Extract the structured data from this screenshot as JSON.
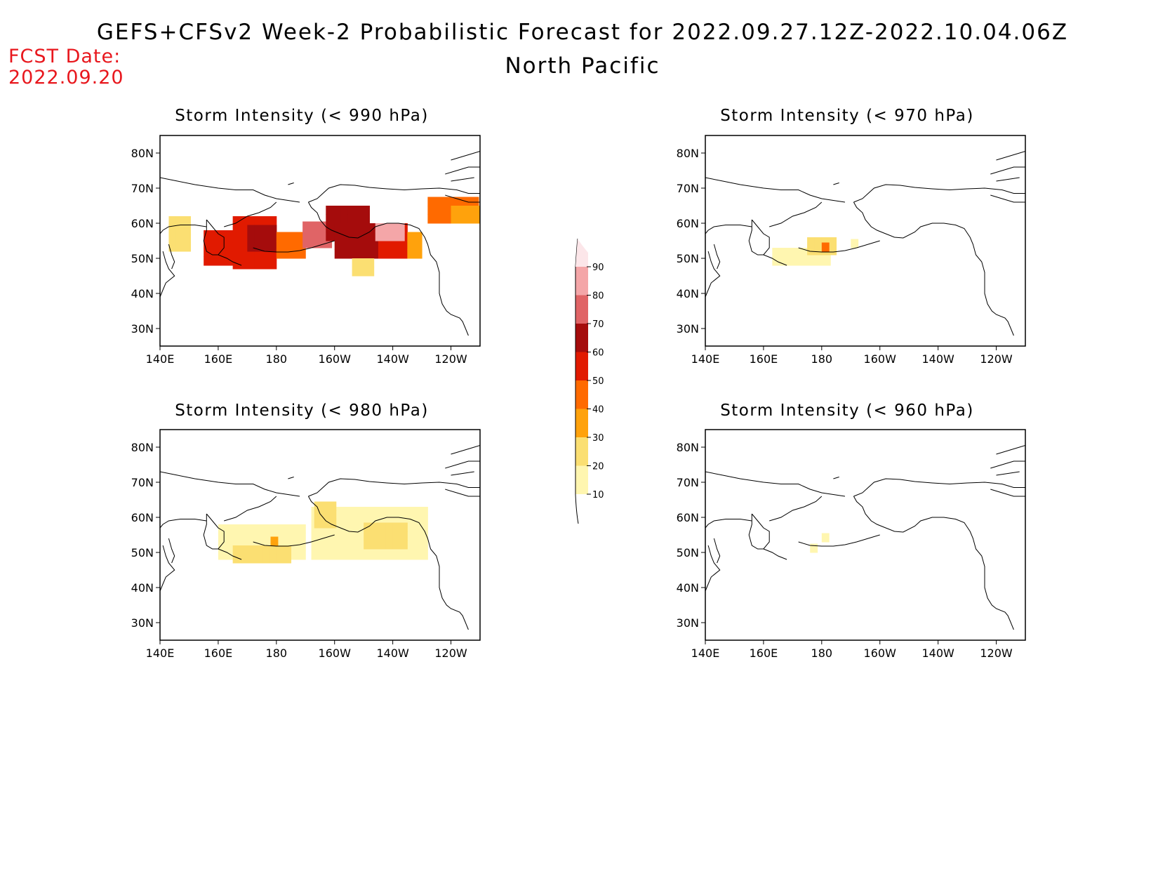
{
  "header": {
    "title": "GEFS+CFSv2 Week-2 Probabilistic Forecast for 2022.09.27.12Z-2022.10.04.06Z",
    "subtitle": "North Pacific",
    "fcst_label": "FCST Date:",
    "fcst_value": "2022.09.20"
  },
  "axes": {
    "lon_labels": [
      "140E",
      "160E",
      "180",
      "160W",
      "140W",
      "120W"
    ],
    "lat_labels": [
      "80N",
      "70N",
      "60N",
      "50N",
      "40N",
      "30N"
    ]
  },
  "panels": [
    {
      "id": "p990",
      "title": "Storm Intensity (< 990 hPa)"
    },
    {
      "id": "p970",
      "title": "Storm Intensity (< 970 hPa)"
    },
    {
      "id": "p980",
      "title": "Storm Intensity (< 980 hPa)"
    },
    {
      "id": "p960",
      "title": "Storm Intensity (< 960 hPa)"
    }
  ],
  "colorbar": {
    "labels": [
      "90",
      "80",
      "70",
      "60",
      "50",
      "40",
      "30",
      "20",
      "10"
    ],
    "colors": [
      "#fce6e9",
      "#f4a6a8",
      "#e06466",
      "#a50c0c",
      "#e11a00",
      "#ff6a00",
      "#ffa20c",
      "#fbdf72",
      "#fff6b0"
    ]
  }
}
